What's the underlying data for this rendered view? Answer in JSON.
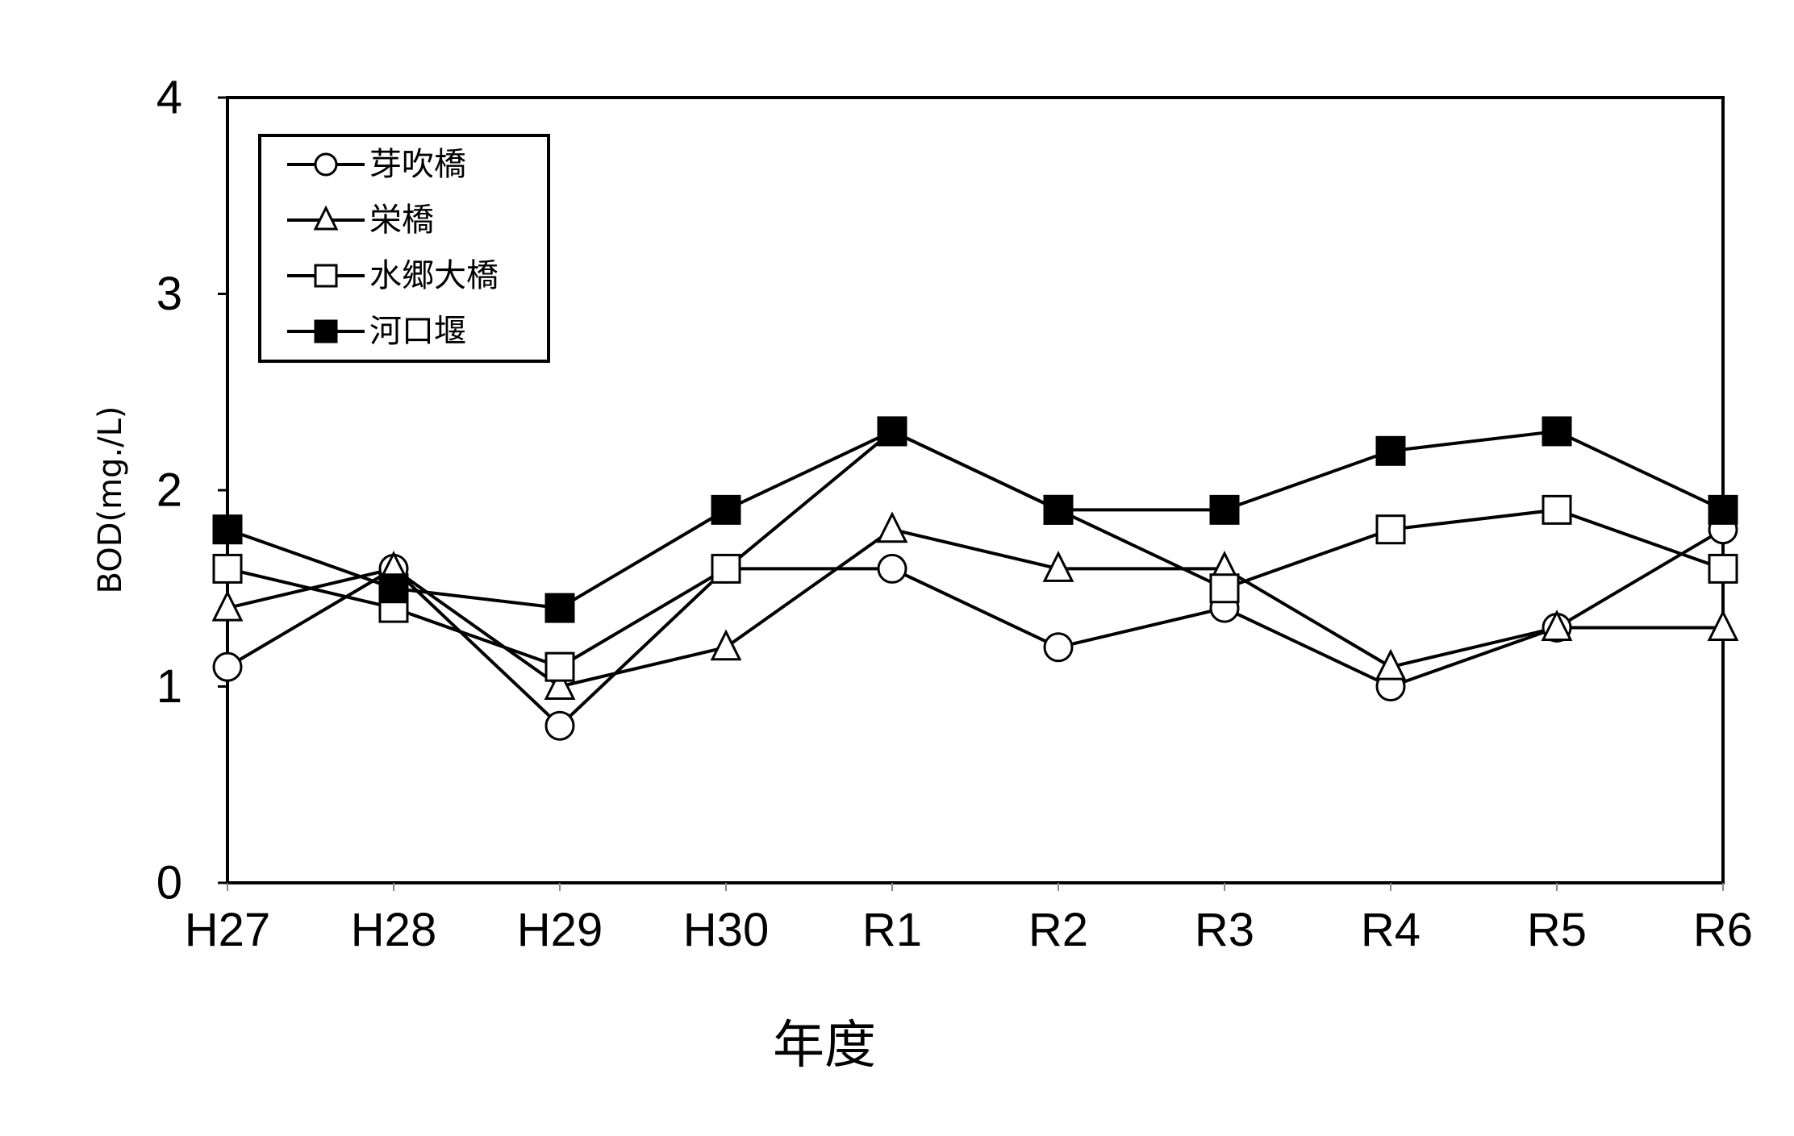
{
  "chart_data": {
    "type": "line",
    "xlabel": "年度",
    "ylabel": "BOD(mg./L)",
    "ylim": [
      0,
      4
    ],
    "yticks": [
      0,
      1,
      2,
      3,
      4
    ],
    "categories": [
      "H27",
      "H28",
      "H29",
      "H30",
      "R1",
      "R2",
      "R3",
      "R4",
      "R5",
      "R6"
    ],
    "grid": false,
    "legend_position": "top-left",
    "series": [
      {
        "name": "芽吹橋",
        "marker": "circle-open",
        "values": [
          1.1,
          1.6,
          0.8,
          1.6,
          1.6,
          1.2,
          1.4,
          1.0,
          1.3,
          1.8
        ]
      },
      {
        "name": "栄橋",
        "marker": "triangle-open",
        "values": [
          1.4,
          1.6,
          1.0,
          1.2,
          1.8,
          1.6,
          1.6,
          1.1,
          1.3,
          1.3
        ]
      },
      {
        "name": "水郷大橋",
        "marker": "square-open",
        "values": [
          1.6,
          1.4,
          1.1,
          1.6,
          2.3,
          1.9,
          1.5,
          1.8,
          1.9,
          1.6
        ]
      },
      {
        "name": "河口堰",
        "marker": "square-filled",
        "values": [
          1.8,
          1.5,
          1.4,
          1.9,
          2.3,
          1.9,
          1.9,
          2.2,
          2.3,
          1.9
        ]
      }
    ],
    "line_color": "#000000"
  }
}
